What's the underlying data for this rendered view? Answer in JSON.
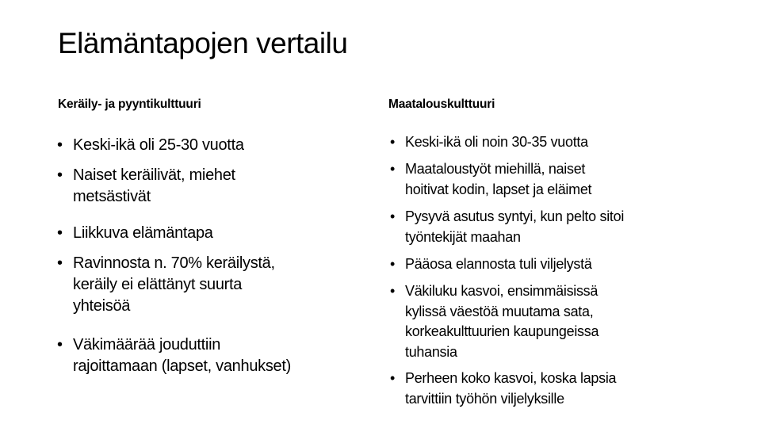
{
  "title": "Elämäntapojen vertailu",
  "left": {
    "heading": "Keräily- ja pyyntikulttuuri",
    "items": [
      {
        "lines": [
          "Keski-ikä oli 25-30 vuotta"
        ]
      },
      {
        "lines": [
          "Naiset keräilivät, miehet",
          "metsästivät"
        ]
      },
      {
        "lines": [
          "Liikkuva elämäntapa"
        ]
      },
      {
        "lines": [
          "Ravinnosta n. 70% keräilystä,",
          "keräily ei elättänyt suurta",
          "yhteisöä"
        ]
      },
      {
        "lines": [
          "Väkimäärää jouduttiin",
          "rajoittamaan (lapset, vanhukset)"
        ]
      }
    ]
  },
  "right": {
    "heading": "Maatalouskulttuuri",
    "items": [
      {
        "lines": [
          "Keski-ikä oli noin 30-35 vuotta"
        ]
      },
      {
        "lines": [
          "Maataloustyöt miehillä, naiset",
          "hoitivat kodin, lapset ja eläimet"
        ]
      },
      {
        "lines": [
          "Pysyvä asutus syntyi, kun pelto sitoi",
          "työntekijät maahan"
        ]
      },
      {
        "lines": [
          "Pääosa elannosta tuli viljelystä"
        ]
      },
      {
        "lines": [
          "Väkiluku kasvoi, ensimmäisissä",
          "kylissä väestöä muutama sata,",
          "korkeakulttuurien kaupungeissa",
          "tuhansia"
        ]
      },
      {
        "lines": [
          "Perheen koko kasvoi, koska lapsia",
          "tarvittiin työhön viljelyksille"
        ]
      }
    ]
  },
  "bullet": "•"
}
